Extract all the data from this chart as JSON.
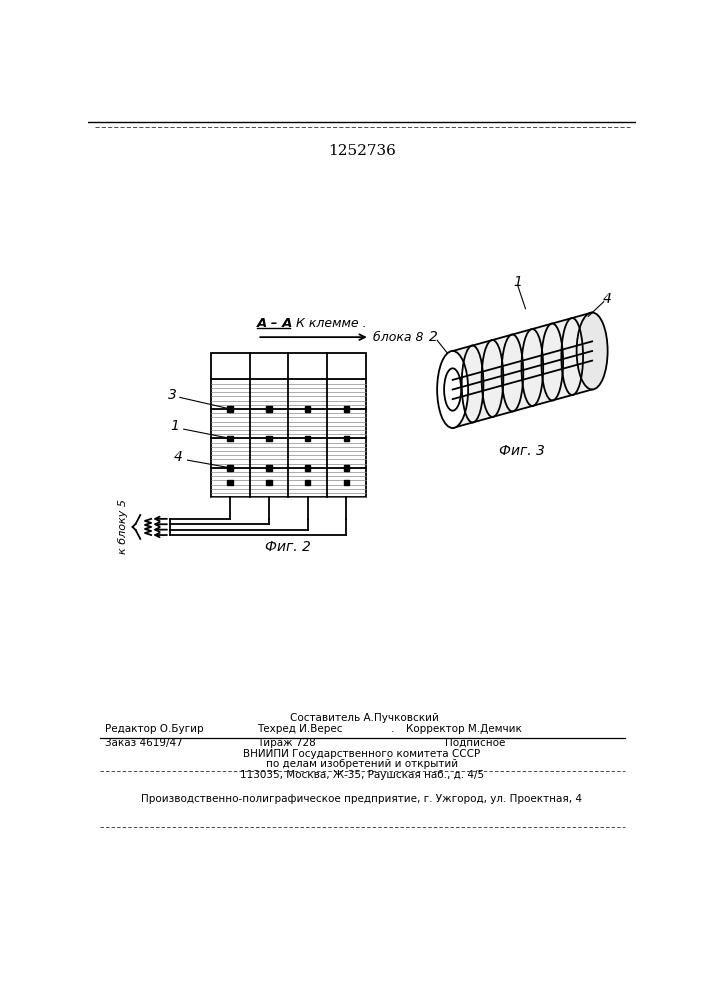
{
  "title_number": "1252736",
  "fig2_label": "Фиг. 2",
  "fig3_label": "Фиг. 3",
  "label_AA": "А – А",
  "label_k_klemme": "К клемме .",
  "label_bloka8": "блока 8",
  "label_k_bloku5": "к блоку 5",
  "label_1a": "1",
  "label_3": "3",
  "label_4a": "4",
  "label_1b": "1",
  "label_4b": "4",
  "label_2": "2",
  "editor_sestavitel": "Составитель А.Пучковский",
  "editor_redaktor": "Редактор О.Бугир",
  "editor_tekhred": "Техред И.Верес",
  "editor_dot": ".",
  "editor_korrektor": "Корректор М.Демчик",
  "zakaz": "Заказ 4619/47",
  "tirazh": "Тираж 728",
  "podpisnoe": "Подписное",
  "vniipи_line1": "ВНИИПИ Государственного комитета СССР",
  "vniipи_line2": "по делам изобретений и открытий",
  "vniipи_line3": "113035, Москва, Ж-35, Раушская наб., д. 4/5",
  "factory_line": "Производственно-полиграфическое предприятие, г. Ужгород, ул. Проектная, 4",
  "bg_color": "#ffffff",
  "line_color": "#000000"
}
